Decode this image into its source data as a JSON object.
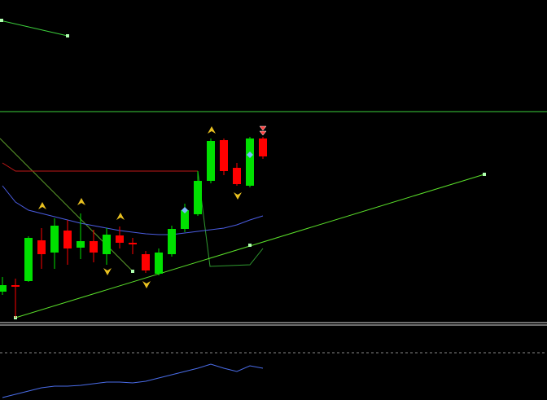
{
  "chart_data": {
    "type": "candlestick",
    "up_color": "#00e000",
    "down_color": "#ff0000",
    "ylim": [
      0,
      400
    ],
    "candles": [
      {
        "open": 42,
        "high": 60,
        "low": 38,
        "close": 50
      },
      {
        "open": 50,
        "high": 58,
        "low": 10,
        "close": 48
      },
      {
        "open": 55,
        "high": 110,
        "low": 54,
        "close": 108
      },
      {
        "open": 105,
        "high": 120,
        "low": 70,
        "close": 88
      },
      {
        "open": 90,
        "high": 132,
        "low": 70,
        "close": 123
      },
      {
        "open": 117,
        "high": 130,
        "low": 75,
        "close": 95
      },
      {
        "open": 96,
        "high": 138,
        "low": 82,
        "close": 104
      },
      {
        "open": 104,
        "high": 118,
        "low": 78,
        "close": 90
      },
      {
        "open": 88,
        "high": 120,
        "low": 75,
        "close": 112
      },
      {
        "open": 111,
        "high": 122,
        "low": 95,
        "close": 102
      },
      {
        "open": 102,
        "high": 108,
        "low": 88,
        "close": 100
      },
      {
        "open": 88,
        "high": 92,
        "low": 65,
        "close": 68
      },
      {
        "open": 64,
        "high": 95,
        "low": 62,
        "close": 90
      },
      {
        "open": 88,
        "high": 123,
        "low": 85,
        "close": 119
      },
      {
        "open": 119,
        "high": 150,
        "low": 115,
        "close": 142
      },
      {
        "open": 137,
        "high": 190,
        "low": 135,
        "close": 178
      },
      {
        "open": 178,
        "high": 230,
        "low": 175,
        "close": 227
      },
      {
        "open": 228,
        "high": 230,
        "low": 185,
        "close": 190
      },
      {
        "open": 194,
        "high": 200,
        "low": 172,
        "close": 174
      },
      {
        "open": 172,
        "high": 232,
        "low": 170,
        "close": 230
      },
      {
        "open": 230,
        "high": 232,
        "low": 205,
        "close": 208
      }
    ],
    "series": [
      {
        "color": "#4a5ce0",
        "values": [
          172,
          152,
          142,
          138,
          134,
          130,
          126,
          123,
          120,
          117,
          115,
          113,
          112,
          112,
          114,
          116,
          118,
          120,
          124,
          130,
          135
        ]
      },
      {
        "color": "#c01818",
        "values": [
          200,
          190,
          190,
          190,
          190,
          190,
          190,
          190,
          190,
          190,
          190,
          190,
          190,
          190,
          190,
          190,
          null,
          null,
          null,
          null,
          null
        ]
      }
    ],
    "indicator": {
      "color": "#4a6ce8",
      "ylim": [
        0,
        61
      ],
      "values": [
        3,
        7,
        11,
        15,
        17,
        17,
        18,
        20,
        22,
        22,
        21,
        23,
        27,
        31,
        35,
        39,
        44,
        39,
        35,
        42,
        39
      ]
    }
  }
}
